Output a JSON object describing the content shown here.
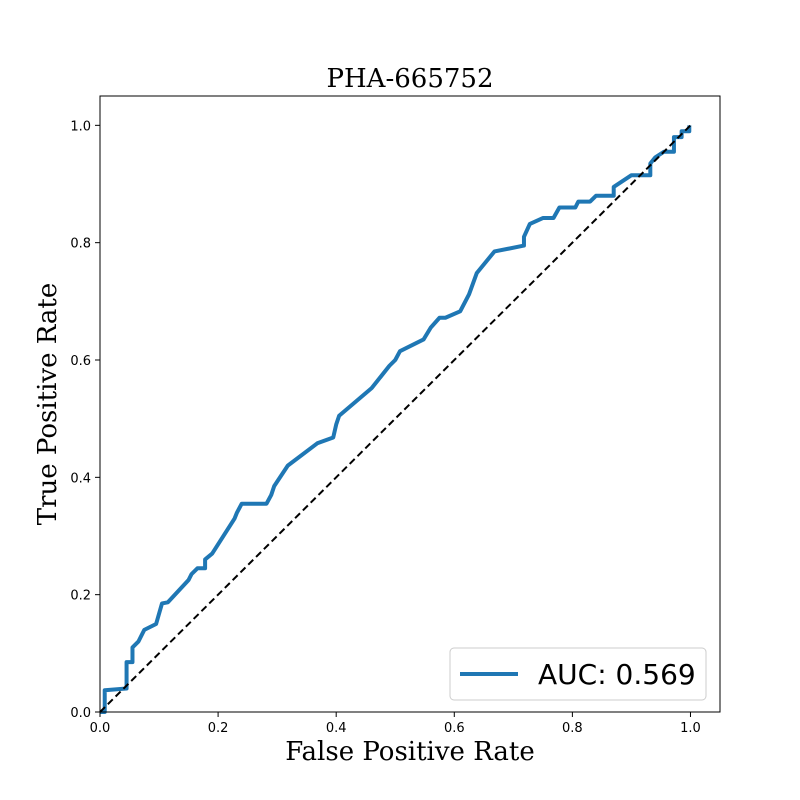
{
  "chart_data": {
    "type": "line",
    "title": "PHA-665752",
    "xlabel": "False Positive Rate",
    "ylabel": "True Positive Rate",
    "xlim": [
      0.0,
      1.05
    ],
    "ylim": [
      0.0,
      1.05
    ],
    "xticks": [
      "0.0",
      "0.2",
      "0.4",
      "0.6",
      "0.8",
      "1.0"
    ],
    "yticks": [
      "0.0",
      "0.2",
      "0.4",
      "0.6",
      "0.8",
      "1.0"
    ],
    "grid": false,
    "legend_position": "lower-right",
    "series": [
      {
        "name": "AUC: 0.569",
        "color": "#1f77b4",
        "x": [
          0.0,
          0.008,
          0.008,
          0.045,
          0.045,
          0.055,
          0.055,
          0.065,
          0.075,
          0.095,
          0.105,
          0.115,
          0.15,
          0.155,
          0.165,
          0.178,
          0.178,
          0.19,
          0.228,
          0.232,
          0.24,
          0.282,
          0.29,
          0.295,
          0.318,
          0.368,
          0.395,
          0.4,
          0.405,
          0.46,
          0.49,
          0.5,
          0.508,
          0.548,
          0.56,
          0.575,
          0.585,
          0.61,
          0.625,
          0.638,
          0.668,
          0.718,
          0.718,
          0.728,
          0.75,
          0.768,
          0.778,
          0.788,
          0.805,
          0.81,
          0.83,
          0.838,
          0.84,
          0.87,
          0.87,
          0.9,
          0.932,
          0.932,
          0.94,
          0.955,
          0.972,
          0.972,
          0.985,
          0.985,
          0.998,
          0.998
        ],
        "y": [
          0.0,
          0.0,
          0.037,
          0.04,
          0.085,
          0.085,
          0.11,
          0.12,
          0.14,
          0.15,
          0.185,
          0.187,
          0.225,
          0.235,
          0.245,
          0.245,
          0.26,
          0.27,
          0.33,
          0.34,
          0.355,
          0.355,
          0.37,
          0.385,
          0.42,
          0.458,
          0.468,
          0.49,
          0.505,
          0.552,
          0.59,
          0.6,
          0.615,
          0.635,
          0.655,
          0.672,
          0.672,
          0.683,
          0.712,
          0.748,
          0.785,
          0.795,
          0.81,
          0.832,
          0.842,
          0.842,
          0.86,
          0.86,
          0.86,
          0.87,
          0.87,
          0.878,
          0.88,
          0.88,
          0.895,
          0.915,
          0.915,
          0.935,
          0.945,
          0.955,
          0.955,
          0.98,
          0.98,
          0.99,
          0.99,
          1.0
        ]
      },
      {
        "name": "",
        "color": "#000000",
        "dashed": true,
        "x": [
          0.0,
          1.0
        ],
        "y": [
          0.0,
          1.0
        ]
      }
    ]
  }
}
